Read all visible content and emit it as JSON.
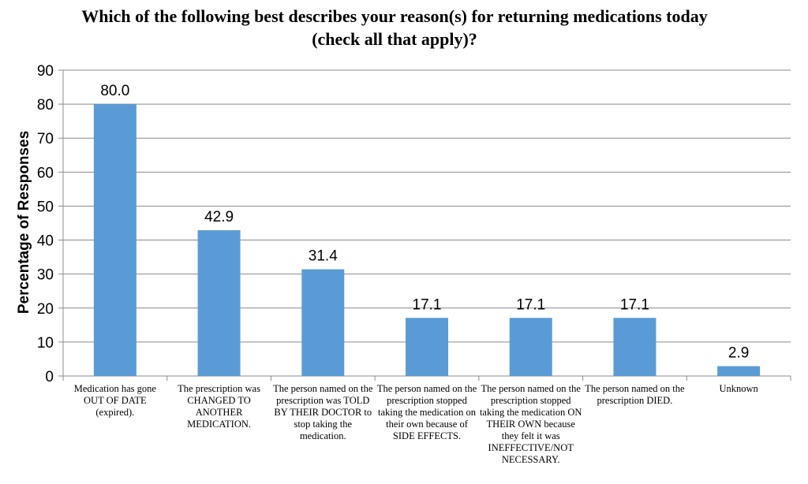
{
  "chart_data": {
    "type": "bar",
    "title": "Which of the following best describes your reason(s) for returning medications today (check all that apply)?",
    "ylabel": "Percentage of Responses",
    "xlabel": "",
    "ylim": [
      0,
      90
    ],
    "yticks": [
      0,
      10,
      20,
      30,
      40,
      50,
      60,
      70,
      80,
      90
    ],
    "grid": true,
    "bar_color": "#5B9BD5",
    "categories": [
      "Medication has gone OUT OF DATE (expired).",
      "The prescription was CHANGED TO ANOTHER MEDICATION.",
      "The person named on the prescription was TOLD BY THEIR DOCTOR to stop taking the medication.",
      "The person named on the prescription stopped taking the medication on their own because of SIDE EFFECTS.",
      "The person named on the prescription stopped taking the medication ON THEIR OWN because they felt it was INEFFECTIVE/NOT NECESSARY.",
      "The person named on the prescription DIED.",
      "Unknown"
    ],
    "values": [
      80.0,
      42.9,
      31.4,
      17.1,
      17.1,
      17.1,
      2.9
    ],
    "data_labels": [
      "80.0",
      "42.9",
      "31.4",
      "17.1",
      "17.1",
      "17.1",
      "2.9"
    ]
  }
}
